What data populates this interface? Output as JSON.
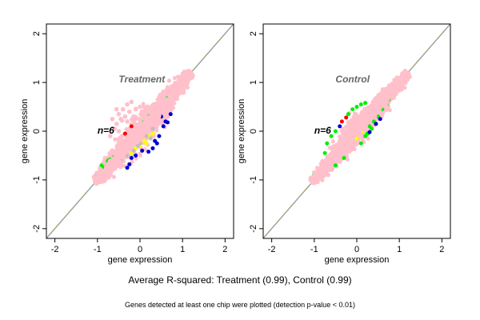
{
  "chart_data": [
    {
      "type": "scatter",
      "panel_title": "Treatment",
      "annotation": "n=6",
      "xlabel": "gene expression",
      "ylabel": "gene expression",
      "xlim": [
        -2.2,
        2.2
      ],
      "ylim": [
        -2.2,
        2.2
      ],
      "xticks": [
        -2,
        -1,
        0,
        1,
        2
      ],
      "yticks": [
        -2,
        -1,
        0,
        1,
        2
      ],
      "grid": false,
      "reference_lines": [
        {
          "slope": 1,
          "intercept": 0,
          "color": "#4169e1"
        },
        {
          "slope": 1,
          "intercept": 0.01,
          "color": "#bdb76b"
        }
      ],
      "cloud": {
        "x_range": [
          -1.05,
          1.2
        ],
        "spread": 0.13,
        "color": "#ffc0cb"
      },
      "series": [
        {
          "color": "#0000cd",
          "points": [
            [
              0.45,
              -0.1
            ],
            [
              0.55,
              0.1
            ],
            [
              0.6,
              0.2
            ],
            [
              0.4,
              -0.25
            ],
            [
              0.3,
              -0.35
            ],
            [
              0.2,
              -0.42
            ],
            [
              -0.1,
              -0.5
            ],
            [
              -0.2,
              -0.55
            ],
            [
              -0.25,
              -0.68
            ],
            [
              -0.3,
              -0.75
            ],
            [
              0.5,
              0.3
            ],
            [
              0.65,
              0.18
            ],
            [
              0.35,
              -0.2
            ],
            [
              0.05,
              -0.4
            ],
            [
              0.72,
              0.35
            ],
            [
              -0.65,
              -0.75
            ],
            [
              -0.75,
              -0.82
            ]
          ]
        },
        {
          "color": "#00ee00",
          "points": [
            [
              -0.9,
              -0.7
            ],
            [
              -0.8,
              -0.65
            ],
            [
              -0.85,
              -0.75
            ],
            [
              -0.7,
              -0.58
            ],
            [
              -0.6,
              -0.52
            ],
            [
              -0.75,
              -0.6
            ],
            [
              -0.95,
              -0.85
            ],
            [
              -1.0,
              -0.9
            ],
            [
              0.1,
              0.2
            ],
            [
              0.2,
              0.3
            ],
            [
              -0.5,
              -0.45
            ],
            [
              -0.3,
              -0.25
            ],
            [
              0.6,
              0.7
            ],
            [
              0.9,
              1.0
            ]
          ]
        },
        {
          "color": "#ffff00",
          "points": [
            [
              0.1,
              -0.2
            ],
            [
              0.0,
              -0.3
            ],
            [
              0.2,
              -0.1
            ],
            [
              -0.1,
              -0.35
            ],
            [
              0.3,
              -0.05
            ],
            [
              -0.2,
              -0.45
            ],
            [
              0.15,
              -0.25
            ]
          ]
        },
        {
          "color": "#bebebe",
          "points": [
            [
              -0.3,
              -0.5
            ],
            [
              -0.15,
              -0.4
            ],
            [
              0.0,
              -0.25
            ],
            [
              0.15,
              -0.1
            ],
            [
              -0.45,
              -0.6
            ],
            [
              0.3,
              0.05
            ],
            [
              0.25,
              -0.15
            ],
            [
              -0.05,
              -0.3
            ]
          ]
        },
        {
          "color": "#ff0000",
          "points": [
            [
              -0.2,
              0.1
            ],
            [
              -0.35,
              -0.05
            ]
          ]
        }
      ],
      "extra_pink": [
        [
          -0.55,
          0.15
        ],
        [
          -0.5,
          0.35
        ],
        [
          -0.4,
          0.45
        ],
        [
          -0.3,
          0.55
        ],
        [
          -0.2,
          0.6
        ],
        [
          -0.6,
          0.05
        ],
        [
          -0.45,
          0.25
        ],
        [
          -0.25,
          0.4
        ],
        [
          -0.35,
          0.3
        ],
        [
          -0.1,
          0.45
        ],
        [
          0.0,
          0.5
        ],
        [
          -0.5,
          0.0
        ],
        [
          -0.3,
          0.2
        ],
        [
          -0.15,
          0.3
        ],
        [
          0.05,
          0.35
        ],
        [
          -0.7,
          -0.1
        ],
        [
          -0.65,
          0.25
        ],
        [
          -0.55,
          0.45
        ]
      ]
    },
    {
      "type": "scatter",
      "panel_title": "Control",
      "annotation": "n=6",
      "xlabel": "gene expression",
      "ylabel": "gene expression",
      "xlim": [
        -2.2,
        2.2
      ],
      "ylim": [
        -2.2,
        2.2
      ],
      "xticks": [
        -2,
        -1,
        0,
        1,
        2
      ],
      "yticks": [
        -2,
        -1,
        0,
        1,
        2
      ],
      "grid": false,
      "reference_lines": [
        {
          "slope": 1,
          "intercept": 0,
          "color": "#4169e1"
        },
        {
          "slope": 1,
          "intercept": 0.01,
          "color": "#bdb76b"
        }
      ],
      "cloud": {
        "x_range": [
          -1.05,
          1.2
        ],
        "spread": 0.1,
        "color": "#ffc0cb"
      },
      "series": [
        {
          "color": "#00ee00",
          "points": [
            [
              -0.1,
              0.45
            ],
            [
              0.0,
              0.5
            ],
            [
              0.1,
              0.55
            ],
            [
              0.2,
              0.58
            ],
            [
              -0.2,
              0.35
            ],
            [
              -0.6,
              -0.1
            ],
            [
              -0.5,
              0.0
            ],
            [
              -0.7,
              -0.25
            ],
            [
              0.3,
              0.1
            ],
            [
              0.4,
              0.2
            ],
            [
              0.5,
              0.3
            ],
            [
              0.6,
              0.45
            ],
            [
              0.2,
              -0.1
            ],
            [
              0.1,
              -0.25
            ],
            [
              0.25,
              -0.05
            ],
            [
              0.35,
              0.05
            ],
            [
              -0.3,
              -0.55
            ],
            [
              -0.5,
              -0.7
            ],
            [
              -0.8,
              -0.75
            ],
            [
              -1.0,
              -0.9
            ],
            [
              -0.9,
              -0.85
            ],
            [
              0.7,
              0.55
            ],
            [
              0.75,
              0.65
            ],
            [
              -0.75,
              -0.45
            ]
          ]
        },
        {
          "color": "#0000cd",
          "points": [
            [
              0.3,
              -0.02
            ],
            [
              0.45,
              0.15
            ],
            [
              0.55,
              0.25
            ],
            [
              -0.4,
              0.1
            ]
          ]
        },
        {
          "color": "#ff0000",
          "points": [
            [
              -0.35,
              0.2
            ],
            [
              -0.25,
              0.28
            ]
          ]
        },
        {
          "color": "#ffff00",
          "points": [
            [
              0.15,
              0.0
            ],
            [
              0.0,
              -0.15
            ]
          ]
        }
      ],
      "extra_pink": []
    }
  ],
  "captions": {
    "main": "Average R-squared: Treatment (0.99), Control (0.99)",
    "sub": "Genes detected at least one chip were plotted (detection p-value < 0.01)"
  }
}
